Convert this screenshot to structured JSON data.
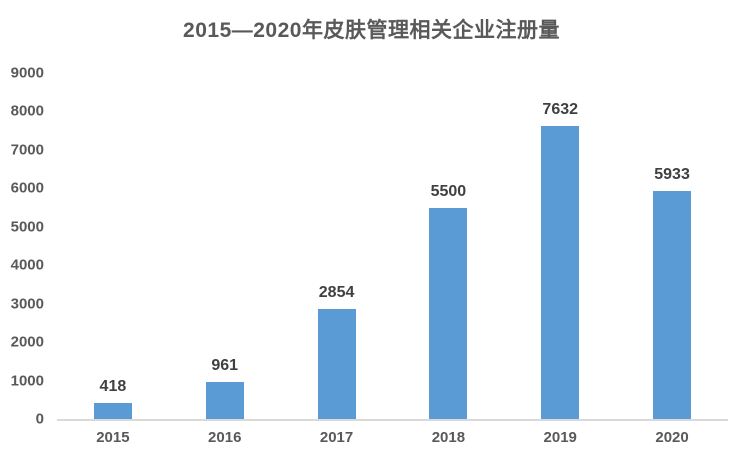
{
  "chart_data": {
    "type": "bar",
    "title": "2015—2020年皮肤管理相关企业注册量",
    "categories": [
      "2015",
      "2016",
      "2017",
      "2018",
      "2019",
      "2020"
    ],
    "values": [
      418,
      961,
      2854,
      5500,
      7632,
      5933
    ],
    "xlabel": "",
    "ylabel": "",
    "ylim": [
      0,
      9000
    ],
    "yticks": [
      0,
      1000,
      2000,
      3000,
      4000,
      5000,
      6000,
      7000,
      8000,
      9000
    ],
    "grid": false,
    "legend": false,
    "data_labels": true,
    "colors": {
      "bar": "#5b9bd5",
      "title": "#595959",
      "tick_labels": "#595959",
      "data_labels": "#404040",
      "axis_line": "#d9d9d9",
      "background": "#ffffff"
    }
  }
}
